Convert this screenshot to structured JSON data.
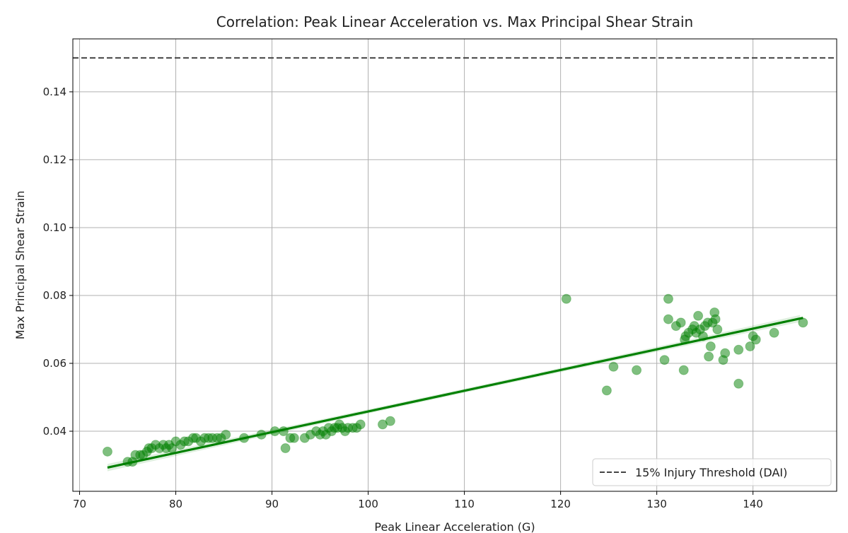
{
  "chart_data": {
    "type": "scatter",
    "title": "Correlation: Peak Linear Acceleration vs. Max Principal Shear Strain",
    "xlabel": "Peak Linear Acceleration (G)",
    "ylabel": "Max Principal Shear Strain",
    "xlim": [
      69.3,
      148.7
    ],
    "ylim": [
      0.0223,
      0.1556
    ],
    "xticks": [
      70,
      80,
      90,
      100,
      110,
      120,
      130,
      140
    ],
    "yticks": [
      0.04,
      0.06,
      0.08,
      0.1,
      0.12,
      0.14
    ],
    "ytick_labels": [
      "0.04",
      "0.06",
      "0.08",
      "0.10",
      "0.12",
      "0.14"
    ],
    "grid": true,
    "point_color": "#008000",
    "points": [
      [
        72.9,
        0.034
      ],
      [
        75,
        0.031
      ],
      [
        75.5,
        0.031
      ],
      [
        75.8,
        0.033
      ],
      [
        76.3,
        0.033
      ],
      [
        76.6,
        0.033
      ],
      [
        77,
        0.034
      ],
      [
        77.2,
        0.035
      ],
      [
        77.5,
        0.035
      ],
      [
        77.9,
        0.036
      ],
      [
        78.3,
        0.035
      ],
      [
        78.7,
        0.036
      ],
      [
        79,
        0.035
      ],
      [
        79.3,
        0.036
      ],
      [
        79.6,
        0.035
      ],
      [
        80,
        0.037
      ],
      [
        80.5,
        0.036
      ],
      [
        80.9,
        0.037
      ],
      [
        81.3,
        0.037
      ],
      [
        81.8,
        0.038
      ],
      [
        82.1,
        0.038
      ],
      [
        82.6,
        0.037
      ],
      [
        83,
        0.038
      ],
      [
        83.4,
        0.038
      ],
      [
        83.8,
        0.038
      ],
      [
        84.3,
        0.038
      ],
      [
        84.7,
        0.038
      ],
      [
        85.2,
        0.039
      ],
      [
        87.1,
        0.038
      ],
      [
        88.9,
        0.039
      ],
      [
        90.3,
        0.04
      ],
      [
        91.2,
        0.04
      ],
      [
        91.4,
        0.035
      ],
      [
        91.9,
        0.038
      ],
      [
        92.3,
        0.038
      ],
      [
        93.4,
        0.038
      ],
      [
        94,
        0.039
      ],
      [
        94.6,
        0.04
      ],
      [
        95,
        0.039
      ],
      [
        95.3,
        0.04
      ],
      [
        95.6,
        0.039
      ],
      [
        95.9,
        0.041
      ],
      [
        96.2,
        0.04
      ],
      [
        96.5,
        0.041
      ],
      [
        96.8,
        0.041
      ],
      [
        97,
        0.042
      ],
      [
        97.3,
        0.041
      ],
      [
        97.6,
        0.04
      ],
      [
        97.9,
        0.041
      ],
      [
        98.4,
        0.041
      ],
      [
        98.8,
        0.041
      ],
      [
        99.2,
        0.042
      ],
      [
        101.5,
        0.042
      ],
      [
        102.3,
        0.043
      ],
      [
        120.6,
        0.079
      ],
      [
        124.8,
        0.052
      ],
      [
        125.5,
        0.059
      ],
      [
        127.9,
        0.058
      ],
      [
        130.8,
        0.061
      ],
      [
        131.2,
        0.079
      ],
      [
        131.2,
        0.073
      ],
      [
        132,
        0.071
      ],
      [
        132.5,
        0.072
      ],
      [
        132.8,
        0.058
      ],
      [
        132.9,
        0.067
      ],
      [
        133,
        0.068
      ],
      [
        133.3,
        0.069
      ],
      [
        133.7,
        0.07
      ],
      [
        133.9,
        0.071
      ],
      [
        134.1,
        0.069
      ],
      [
        134.3,
        0.074
      ],
      [
        134.5,
        0.07
      ],
      [
        134.8,
        0.068
      ],
      [
        135,
        0.071
      ],
      [
        135.3,
        0.072
      ],
      [
        135.4,
        0.062
      ],
      [
        135.6,
        0.065
      ],
      [
        135.8,
        0.072
      ],
      [
        136,
        0.075
      ],
      [
        136.1,
        0.073
      ],
      [
        136.3,
        0.07
      ],
      [
        136.9,
        0.061
      ],
      [
        137.1,
        0.063
      ],
      [
        138.5,
        0.064
      ],
      [
        138.5,
        0.054
      ],
      [
        139.7,
        0.065
      ],
      [
        140,
        0.068
      ],
      [
        140.3,
        0.067
      ],
      [
        142.2,
        0.069
      ],
      [
        145.2,
        0.072
      ]
    ],
    "regression": {
      "x": [
        72.9,
        145.2
      ],
      "y": [
        0.0293,
        0.0734
      ]
    },
    "threshold": {
      "y": 0.15,
      "label": "15% Injury Threshold (DAI)",
      "color": "#444444"
    },
    "legend_position": "bottom-right"
  }
}
